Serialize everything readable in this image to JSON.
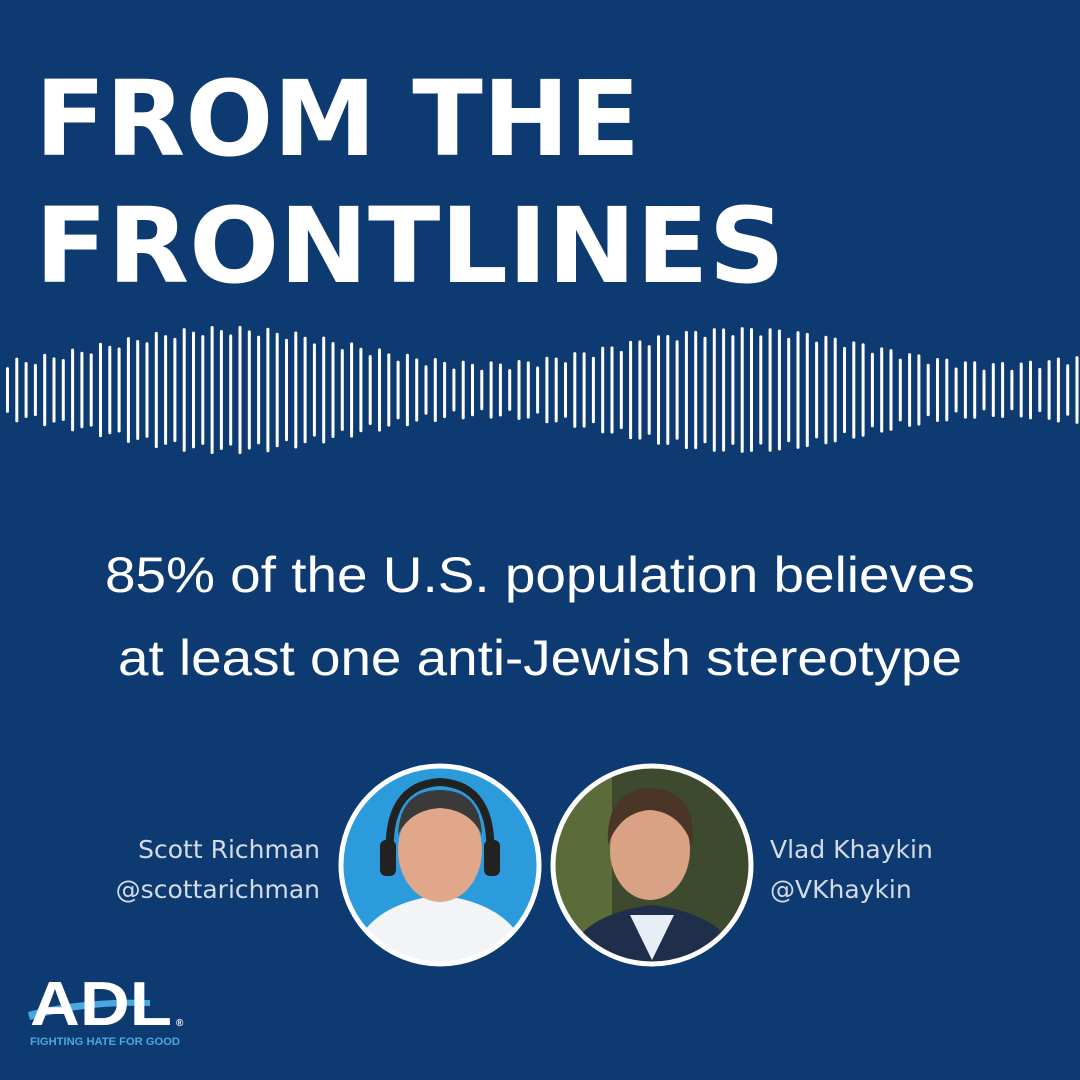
{
  "header": {
    "title_lines": [
      "FROM THE",
      "FRONTLINES"
    ]
  },
  "headline": {
    "lines": [
      "85% of the U.S. population believes",
      "at least one anti-Jewish stereotype"
    ]
  },
  "hosts": [
    {
      "name": "Scott Richman",
      "handle": "@scottarichman"
    },
    {
      "name": "Vlad Khaykin",
      "handle": "@VKhaykin"
    }
  ],
  "logo": {
    "text": "ADL",
    "registered": "®",
    "tagline": "FIGHTING HATE FOR GOOD"
  }
}
